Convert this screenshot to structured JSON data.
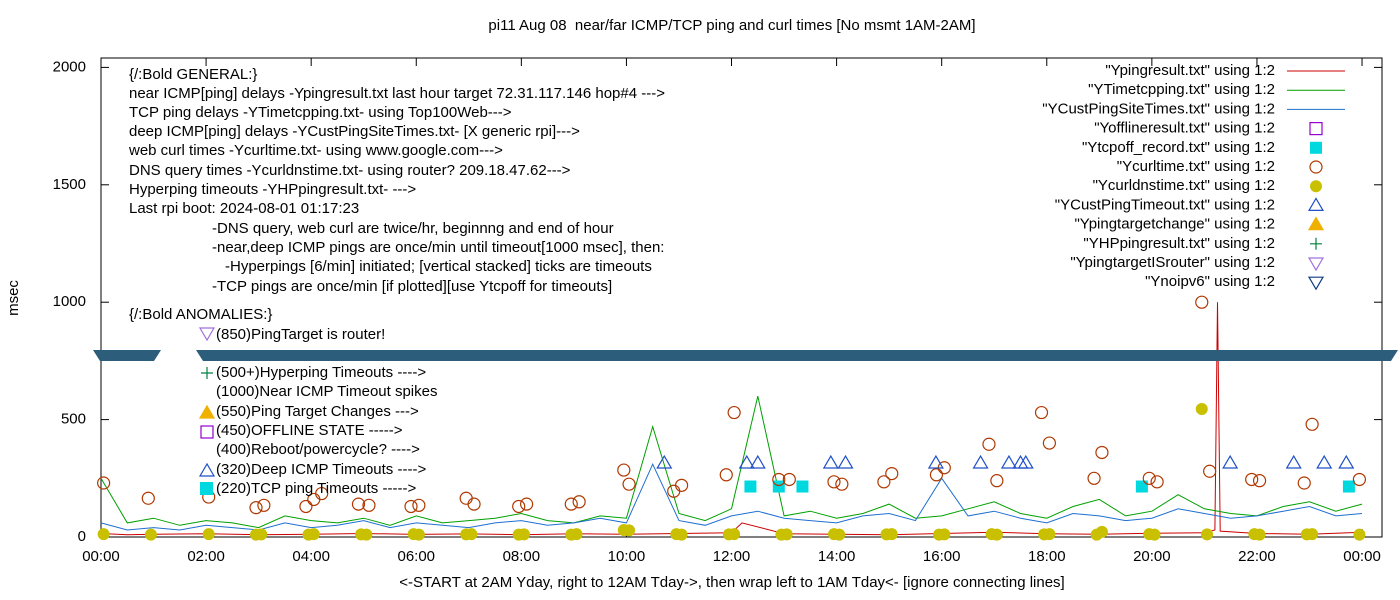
{
  "chart_data": {
    "type": "line",
    "title": "pi11 Aug 08  near/far ICMP/TCP ping and curl times [No msmt 1AM-2AM]",
    "xlabel": "<-START at 2AM Yday, right to 12AM Tday->, then wrap left to 1AM Tday<- [ignore connecting lines]",
    "ylabel": "msec",
    "xlim": [
      0,
      24.38
    ],
    "ylim": [
      0,
      2040
    ],
    "xticks": [
      {
        "value": 0,
        "label": "00:00"
      },
      {
        "value": 2,
        "label": "02:00"
      },
      {
        "value": 4,
        "label": "04:00"
      },
      {
        "value": 6,
        "label": "06:00"
      },
      {
        "value": 8,
        "label": "08:00"
      },
      {
        "value": 10,
        "label": "10:00"
      },
      {
        "value": 12,
        "label": "12:00"
      },
      {
        "value": 14,
        "label": "14:00"
      },
      {
        "value": 16,
        "label": "16:00"
      },
      {
        "value": 18,
        "label": "18:00"
      },
      {
        "value": 20,
        "label": "20:00"
      },
      {
        "value": 22,
        "label": "22:00"
      },
      {
        "value": 24,
        "label": "00:00"
      }
    ],
    "yticks": [
      0,
      500,
      1000,
      1500,
      2000
    ],
    "annotations": [
      "{/:Bold GENERAL:}",
      "near ICMP[ping] delays -Ypingresult.txt last hour target 72.31.117.146 hop#4 --->",
      "TCP ping delays -YTimetcpping.txt- using Top100Web--->",
      "deep ICMP[ping] delays -YCustPingSiteTimes.txt- [X generic rpi]--->",
      "web curl times -Ycurltime.txt- using www.google.com--->",
      "DNS query times -Ycurldnstime.txt- using router? 209.18.47.62--->",
      "Hyperping timeouts -YHPpingresult.txt- --->",
      "Last rpi boot: 2024-08-01 01:17:23",
      "-DNS query, web curl are twice/hr, beginnng and end of hour",
      "-near,deep ICMP pings are once/min until timeout[1000 msec], then:",
      "-Hyperpings [6/min] initiated; [vertical stacked] ticks are timeouts",
      "-TCP pings are once/min [if plotted][use Ytcpoff for timeouts]",
      "{/:Bold ANOMALIES:}",
      "(850)PingTarget is router!",
      "(500+)Hyperping Timeouts ---->",
      "(1000)Near ICMP Timeout spikes",
      "(550)Ping Target Changes --->",
      "(450)OFFLINE STATE ----->",
      "(400)Reboot/powercycle? ---->",
      "(320)Deep ICMP Timeouts ---->",
      "(220)TCP ping Timeouts ----->"
    ],
    "series": [
      {
        "name": "\"Ypingresult.txt\" using 1:2",
        "color": "#cc0000",
        "style": "line",
        "x": [
          0,
          0.5,
          1,
          2,
          3,
          4,
          5,
          6,
          7,
          8,
          9,
          10,
          11,
          12,
          12.2,
          13,
          14,
          15,
          16,
          17,
          18,
          19,
          20,
          21,
          21.2,
          21.25,
          21.3,
          22,
          23,
          24
        ],
        "values": [
          15,
          10,
          12,
          14,
          10,
          12,
          15,
          11,
          13,
          10,
          14,
          12,
          15,
          18,
          60,
          14,
          12,
          10,
          15,
          20,
          14,
          12,
          16,
          18,
          30,
          1000,
          25,
          15,
          12,
          20
        ]
      },
      {
        "name": "\"YTimetcpping.txt\" using 1:2",
        "color": "#00a000",
        "style": "line",
        "x": [
          0,
          0.5,
          1,
          1.5,
          2,
          2.5,
          3,
          3.5,
          4,
          4.5,
          5,
          5.5,
          6,
          6.5,
          7,
          7.5,
          8,
          8.5,
          9,
          9.5,
          10,
          10.5,
          11,
          11.5,
          12,
          12.5,
          13,
          13.5,
          14,
          14.5,
          15,
          15.5,
          16,
          16.5,
          17,
          17.5,
          18,
          18.5,
          19,
          19.5,
          20,
          20.5,
          21,
          21.5,
          22,
          22.5,
          23,
          23.5,
          24
        ],
        "values": [
          250,
          60,
          80,
          50,
          70,
          60,
          40,
          90,
          70,
          60,
          80,
          50,
          90,
          60,
          70,
          80,
          100,
          70,
          60,
          90,
          80,
          470,
          100,
          70,
          120,
          600,
          90,
          110,
          80,
          100,
          140,
          80,
          90,
          120,
          150,
          100,
          80,
          130,
          160,
          90,
          110,
          180,
          120,
          100,
          90,
          130,
          150,
          110,
          140
        ]
      },
      {
        "name": "\"YCustPingSiteTimes.txt\" using 1:2",
        "color": "#1f6fd0",
        "style": "line",
        "x": [
          0,
          0.5,
          1,
          1.5,
          2,
          2.5,
          3,
          3.5,
          4,
          4.5,
          5,
          5.5,
          6,
          6.5,
          7,
          7.5,
          8,
          8.5,
          9,
          9.5,
          10,
          10.5,
          11,
          11.5,
          12,
          12.5,
          13,
          13.5,
          14,
          14.5,
          15,
          15.5,
          16,
          16.5,
          17,
          17.5,
          18,
          18.5,
          19,
          19.5,
          20,
          20.5,
          21,
          21.5,
          22,
          22.5,
          23,
          23.5,
          24
        ],
        "values": [
          60,
          30,
          40,
          30,
          50,
          40,
          30,
          60,
          40,
          50,
          70,
          40,
          60,
          50,
          40,
          60,
          70,
          50,
          60,
          80,
          60,
          310,
          70,
          50,
          90,
          110,
          80,
          70,
          60,
          90,
          100,
          70,
          250,
          90,
          110,
          80,
          60,
          100,
          90,
          70,
          80,
          120,
          100,
          80,
          90,
          110,
          130,
          90,
          100
        ]
      },
      {
        "name": "\"Yofflineresult.txt\" using 1:2",
        "color": "#9400d3",
        "style": "square-open",
        "x": [],
        "values": []
      },
      {
        "name": "\"Ytcpoff_record.txt\" using 1:2",
        "color": "#00d8e0",
        "style": "square-filled",
        "x": [
          12.36,
          12.9,
          13.35,
          19.81,
          23.75
        ],
        "values": [
          215,
          215,
          215,
          215,
          215
        ]
      },
      {
        "name": "\"Ycurltime.txt\" using 1:2",
        "color": "#b03800",
        "style": "circle-open",
        "x": [
          0.05,
          0.9,
          2.05,
          2.95,
          3.1,
          3.9,
          4.05,
          4.2,
          4.9,
          5.1,
          5.9,
          6.05,
          6.95,
          7.1,
          7.95,
          8.1,
          8.95,
          9.1,
          9.95,
          10.05,
          10.9,
          11.05,
          11.9,
          12.05,
          12.9,
          13.1,
          13.95,
          14.1,
          14.9,
          15.05,
          15.9,
          16.05,
          16.9,
          17.05,
          17.9,
          18.05,
          18.9,
          19.05,
          19.95,
          20.1,
          20.95,
          21.1,
          21.9,
          22.05,
          22.9,
          23.05,
          23.95
        ],
        "values": [
          230,
          165,
          170,
          125,
          135,
          130,
          160,
          185,
          140,
          135,
          130,
          135,
          165,
          140,
          130,
          140,
          140,
          150,
          285,
          225,
          195,
          220,
          265,
          530,
          245,
          245,
          235,
          225,
          235,
          270,
          265,
          295,
          395,
          240,
          530,
          400,
          250,
          360,
          250,
          235,
          1000,
          280,
          245,
          240,
          230,
          480,
          245
        ]
      },
      {
        "name": "\"Ycurldnstime.txt\" using 1:2",
        "color": "#c8c000",
        "style": "circle-filled",
        "x": [
          0.05,
          0.95,
          2.05,
          2.95,
          3.05,
          3.95,
          4.05,
          4.95,
          5.05,
          5.95,
          6.05,
          6.95,
          7.05,
          7.95,
          8.05,
          8.95,
          9.05,
          9.95,
          10.05,
          10.95,
          11.05,
          11.95,
          12.05,
          12.95,
          13.05,
          13.95,
          14.05,
          14.95,
          15.05,
          15.95,
          16.05,
          16.95,
          17.05,
          17.95,
          18.05,
          18.95,
          19.05,
          19.95,
          20.05,
          20.95,
          21.05,
          21.95,
          22.05,
          22.95,
          23.05,
          23.95
        ],
        "values": [
          12,
          10,
          12,
          10,
          11,
          10,
          12,
          11,
          10,
          12,
          10,
          11,
          12,
          10,
          11,
          10,
          12,
          30,
          28,
          12,
          10,
          11,
          12,
          10,
          11,
          12,
          10,
          11,
          12,
          10,
          11,
          12,
          10,
          11,
          12,
          10,
          22,
          12,
          10,
          545,
          11,
          12,
          10,
          11,
          12,
          10
        ]
      },
      {
        "name": "\"YCustPingTimeout.txt\" using 1:2",
        "color": "#2050c8",
        "style": "triangle-up-open",
        "x": [
          10.72,
          12.29,
          12.5,
          13.89,
          14.17,
          15.89,
          16.74,
          17.28,
          17.5,
          17.6,
          21.49,
          22.7,
          23.28,
          23.7
        ],
        "values": [
          315,
          315,
          315,
          315,
          315,
          315,
          315,
          315,
          315,
          315,
          315,
          315,
          315,
          315
        ]
      },
      {
        "name": "\"Ypingtargetchange\" using 1:2",
        "color": "#f0b000",
        "style": "triangle-up-filled",
        "x": [],
        "values": []
      },
      {
        "name": "\"YHPpingresult.txt\" using 1:2",
        "color": "#008040",
        "style": "plus",
        "x": [],
        "values": []
      },
      {
        "name": "\"YpingtargetISrouter\" using 1:2",
        "color": "#a070e0",
        "style": "triangle-down-open",
        "x": [],
        "values": []
      },
      {
        "name": "\"Ynoipv6\" using 1:2",
        "color": "#103a80",
        "style": "triangle-down-open",
        "x": [],
        "values": []
      }
    ]
  }
}
